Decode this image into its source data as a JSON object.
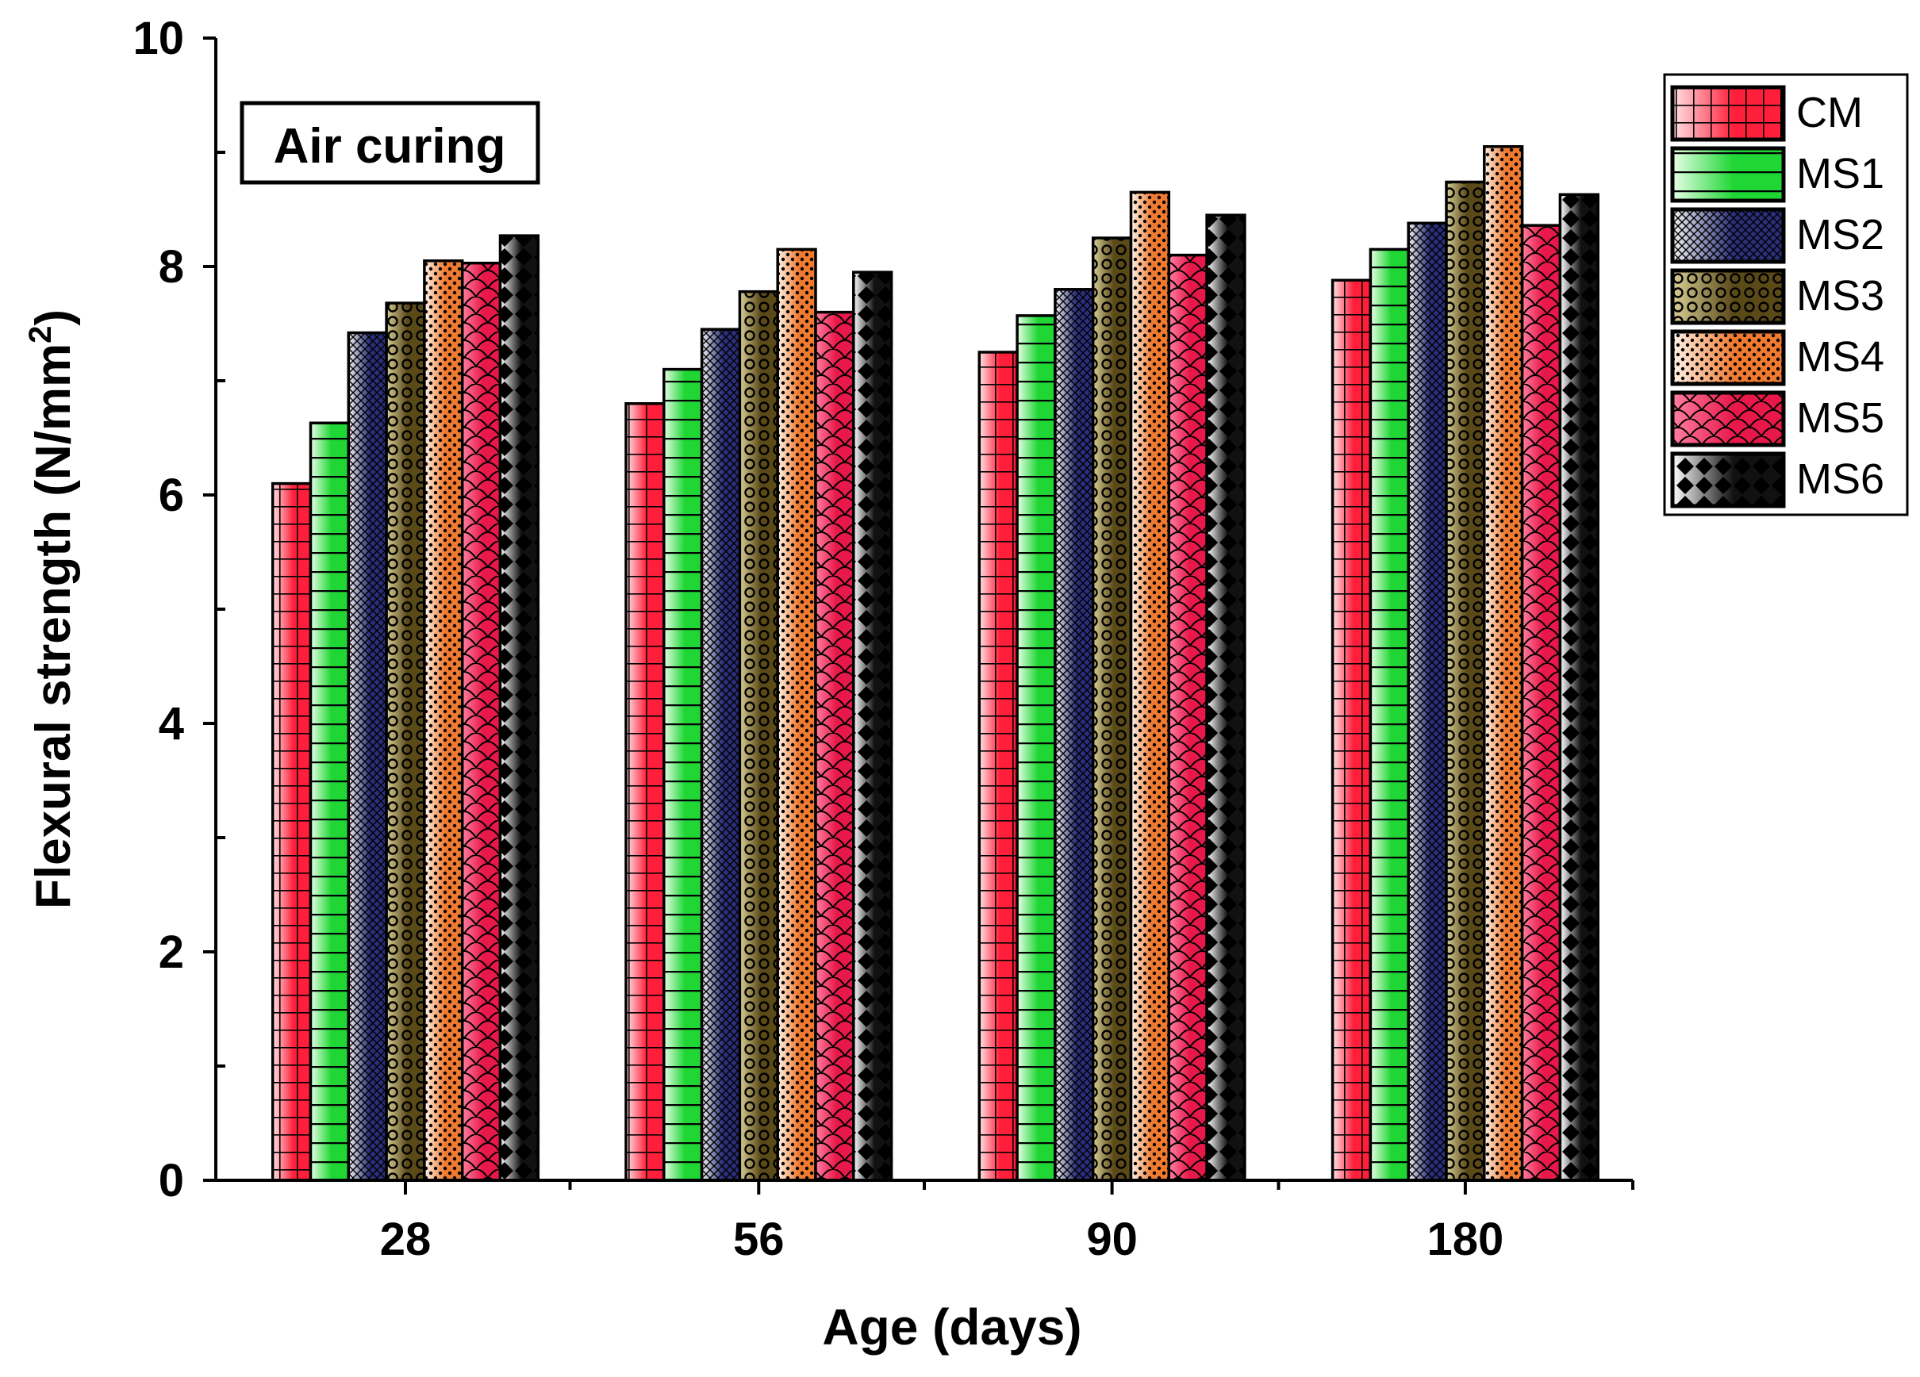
{
  "chart_data": {
    "type": "bar",
    "title": "",
    "annotation": "Air curing",
    "xlabel": "Age (days)",
    "ylabel": "Flexural strength (N/mm",
    "ylabel_sup": "2",
    "ylabel_close": ")",
    "categories": [
      "28",
      "56",
      "90",
      "180"
    ],
    "ylim": [
      0,
      10
    ],
    "yticks": [
      "0",
      "2",
      "4",
      "6",
      "8",
      "10"
    ],
    "yminor_step": 1,
    "grid": false,
    "legend_position": "top-right",
    "series": [
      {
        "name": "CM",
        "values": [
          6.1,
          6.8,
          7.25,
          7.88
        ],
        "pattern": "grid",
        "color": "#ff1f3a",
        "fade": "#ffe3e6"
      },
      {
        "name": "MS1",
        "values": [
          6.63,
          7.1,
          7.57,
          8.15
        ],
        "pattern": "hlines",
        "color": "#1fd634",
        "fade": "#e8ffe8"
      },
      {
        "name": "MS2",
        "values": [
          7.42,
          7.45,
          7.8,
          8.38
        ],
        "pattern": "crosshatch",
        "color": "#2a2f7a",
        "fade": "#f4f4f4"
      },
      {
        "name": "MS3",
        "values": [
          7.68,
          7.78,
          8.25,
          8.74
        ],
        "pattern": "circles",
        "color": "#5a4a18",
        "fade": "#d9cf96"
      },
      {
        "name": "MS4",
        "values": [
          8.05,
          8.15,
          8.65,
          9.05
        ],
        "pattern": "dots",
        "color": "#f07a30",
        "fade": "#fff4ea"
      },
      {
        "name": "MS5",
        "values": [
          8.03,
          7.6,
          8.1,
          8.36
        ],
        "pattern": "scales",
        "color": "#e8184a",
        "fade": "#ff7fa0"
      },
      {
        "name": "MS6",
        "values": [
          8.27,
          7.95,
          8.45,
          8.63
        ],
        "pattern": "diamonds",
        "color": "#111111",
        "fade": "#ffffff"
      }
    ]
  }
}
